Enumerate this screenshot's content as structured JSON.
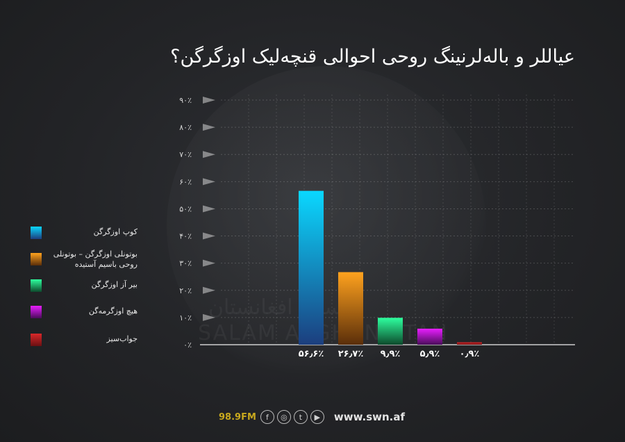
{
  "chart_data": {
    "type": "bar",
    "title": "عياللر و باله‌لرنينگ روحی احوالی قنچه‌ليک اوزگرگن؟",
    "categories": [
      "کوپ اوزگرگن",
      "بوتونلی اوزگرگن – بوتونلی روحی باسيم آستيده",
      "بير آز اوزگرگن",
      "هيچ اوزگرمه‌گن",
      "جواب‌سيز"
    ],
    "values": [
      56.6,
      26.7,
      9.9,
      5.9,
      0.9
    ],
    "value_labels": [
      "۵۶٫۶٪",
      "۲۶٫۷٪",
      "۹٫۹٪",
      "۵٫۹٪",
      "۰٫۹٪"
    ],
    "y_ticks": [
      0,
      10,
      20,
      30,
      40,
      50,
      60,
      70,
      80,
      90
    ],
    "y_tick_labels": [
      "۰٪",
      "۱۰٪",
      "۲۰٪",
      "۳۰٪",
      "۴۰٪",
      "۵۰٪",
      "۶۰٪",
      "۷۰٪",
      "۸۰٪",
      "۹۰٪"
    ],
    "ylim": [
      0,
      90
    ],
    "grid": true,
    "legend_position": "left",
    "colors": [
      [
        "#0ad8ff",
        "#1c3e7e"
      ],
      [
        "#ffa21e",
        "#5a2e0a"
      ],
      [
        "#2eff9e",
        "#0d4a2c"
      ],
      [
        "#e81eff",
        "#4a0c5a"
      ],
      [
        "#d8282a",
        "#6a1012"
      ]
    ]
  },
  "legend": [
    {
      "label": "کوپ اوزگرگن"
    },
    {
      "label": "بوتونلی اوزگرگن – بوتونلی روحی باسيم آستيده"
    },
    {
      "label": "بير آز اوزگرگن"
    },
    {
      "label": "هيچ اوزگرمه‌گن"
    },
    {
      "label": "جواب‌سيز"
    }
  ],
  "watermark": {
    "latin": "SALAM AFGHANISTAN",
    "arabic": "سلام افغانستان"
  },
  "footer": {
    "fm": "98.9FM",
    "icons": [
      "facebook-icon",
      "instagram-icon",
      "twitter-icon",
      "play-icon"
    ],
    "icon_glyphs": [
      "f",
      "◎",
      "t",
      "▶"
    ],
    "url": "www.swn.af"
  }
}
